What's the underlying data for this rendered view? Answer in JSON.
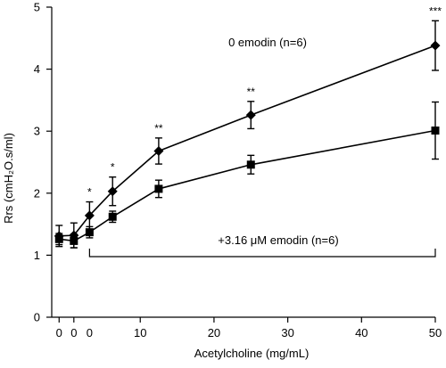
{
  "chart_data": {
    "type": "line",
    "xlabel": "Acetylcholine  (mg/mL)",
    "ylabel": "Rrs (cmH₂O.s/ml)",
    "xlim": [
      -2,
      50
    ],
    "ylim": [
      0,
      5
    ],
    "x_ticks": [
      "0",
      "0",
      "0",
      "10",
      "20",
      "30",
      "40",
      "50"
    ],
    "y_ticks": [
      "0",
      "1",
      "2",
      "3",
      "4",
      "5"
    ],
    "series": [
      {
        "name": "0  emodin (n=6)",
        "marker": "diamond",
        "x": [
          -1,
          1,
          3.125,
          6.25,
          12.5,
          25,
          50
        ],
        "y": [
          1.31,
          1.32,
          1.64,
          2.03,
          2.68,
          3.26,
          4.38
        ],
        "err": [
          0.17,
          0.2,
          0.22,
          0.23,
          0.21,
          0.22,
          0.4
        ],
        "annotations": [
          "",
          "",
          "*",
          "*",
          "**",
          "**",
          "***"
        ]
      },
      {
        "name": "+3.16 μM emodin (n=6)",
        "marker": "square",
        "x": [
          -1,
          1,
          3.125,
          6.25,
          12.5,
          25,
          50
        ],
        "y": [
          1.26,
          1.23,
          1.37,
          1.62,
          2.07,
          2.46,
          3.01
        ],
        "err": [
          0.09,
          0.11,
          0.09,
          0.09,
          0.14,
          0.15,
          0.46
        ]
      }
    ],
    "legend_placement": "in-plot labels"
  }
}
